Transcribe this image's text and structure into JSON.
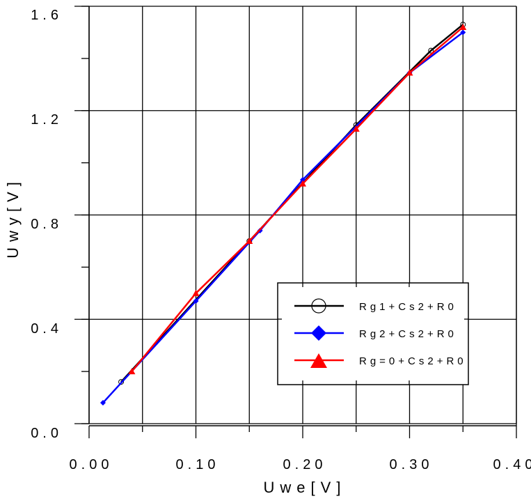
{
  "chart_data": {
    "type": "line",
    "title": "",
    "xlabel": "Uwe[V]",
    "ylabel": "Uwy[V]",
    "xlim": [
      0.0,
      0.4
    ],
    "ylim": [
      0.0,
      1.6
    ],
    "x_ticks": [
      "0.00",
      "0.10",
      "0.20",
      "0.30",
      "0.40"
    ],
    "x_tick_values": [
      0.0,
      0.1,
      0.2,
      0.3,
      0.4
    ],
    "y_ticks": [
      "0.0",
      "0.4",
      "0.8",
      "1.2",
      "1.6"
    ],
    "y_tick_values": [
      0.0,
      0.4,
      0.8,
      1.2,
      1.6
    ],
    "grid": true,
    "x_grid_step": 0.05,
    "y_grid_step": 0.4,
    "y_minor_step": 0.2,
    "legend_position": "lower right (inside)",
    "series": [
      {
        "name": "Rg1+Cs2+R0",
        "color": "#000000",
        "marker": "open-circle",
        "x": [
          0.03,
          0.15,
          0.25,
          0.32,
          0.35
        ],
        "y": [
          0.16,
          0.7,
          1.145,
          1.43,
          1.53
        ]
      },
      {
        "name": "Rg2+Cs2+R0",
        "color": "#0000ff",
        "marker": "filled-diamond",
        "x": [
          0.013,
          0.1,
          0.16,
          0.2,
          0.3,
          0.35
        ],
        "y": [
          0.08,
          0.47,
          0.74,
          0.935,
          1.345,
          1.5
        ]
      },
      {
        "name": "Rg=0+Cs2+R0",
        "color": "#ff0000",
        "marker": "filled-triangle",
        "x": [
          0.04,
          0.1,
          0.15,
          0.2,
          0.25,
          0.3,
          0.35
        ],
        "y": [
          0.2,
          0.5,
          0.7,
          0.92,
          1.13,
          1.345,
          1.52
        ]
      }
    ]
  },
  "legend": {
    "items": [
      {
        "label": "Rg1+Cs2+R0"
      },
      {
        "label": "Rg2+Cs2+R0"
      },
      {
        "label": "Rg=0+Cs2+R0"
      }
    ]
  },
  "axes": {
    "x_label": "Uwe[V]",
    "y_label": "Uwy[V]",
    "x_tick_labels": [
      "0.00",
      "0.10",
      "0.20",
      "0.30",
      "0.40"
    ],
    "y_tick_labels": [
      "0.0",
      "0.4",
      "0.8",
      "1.2",
      "1.6"
    ]
  }
}
